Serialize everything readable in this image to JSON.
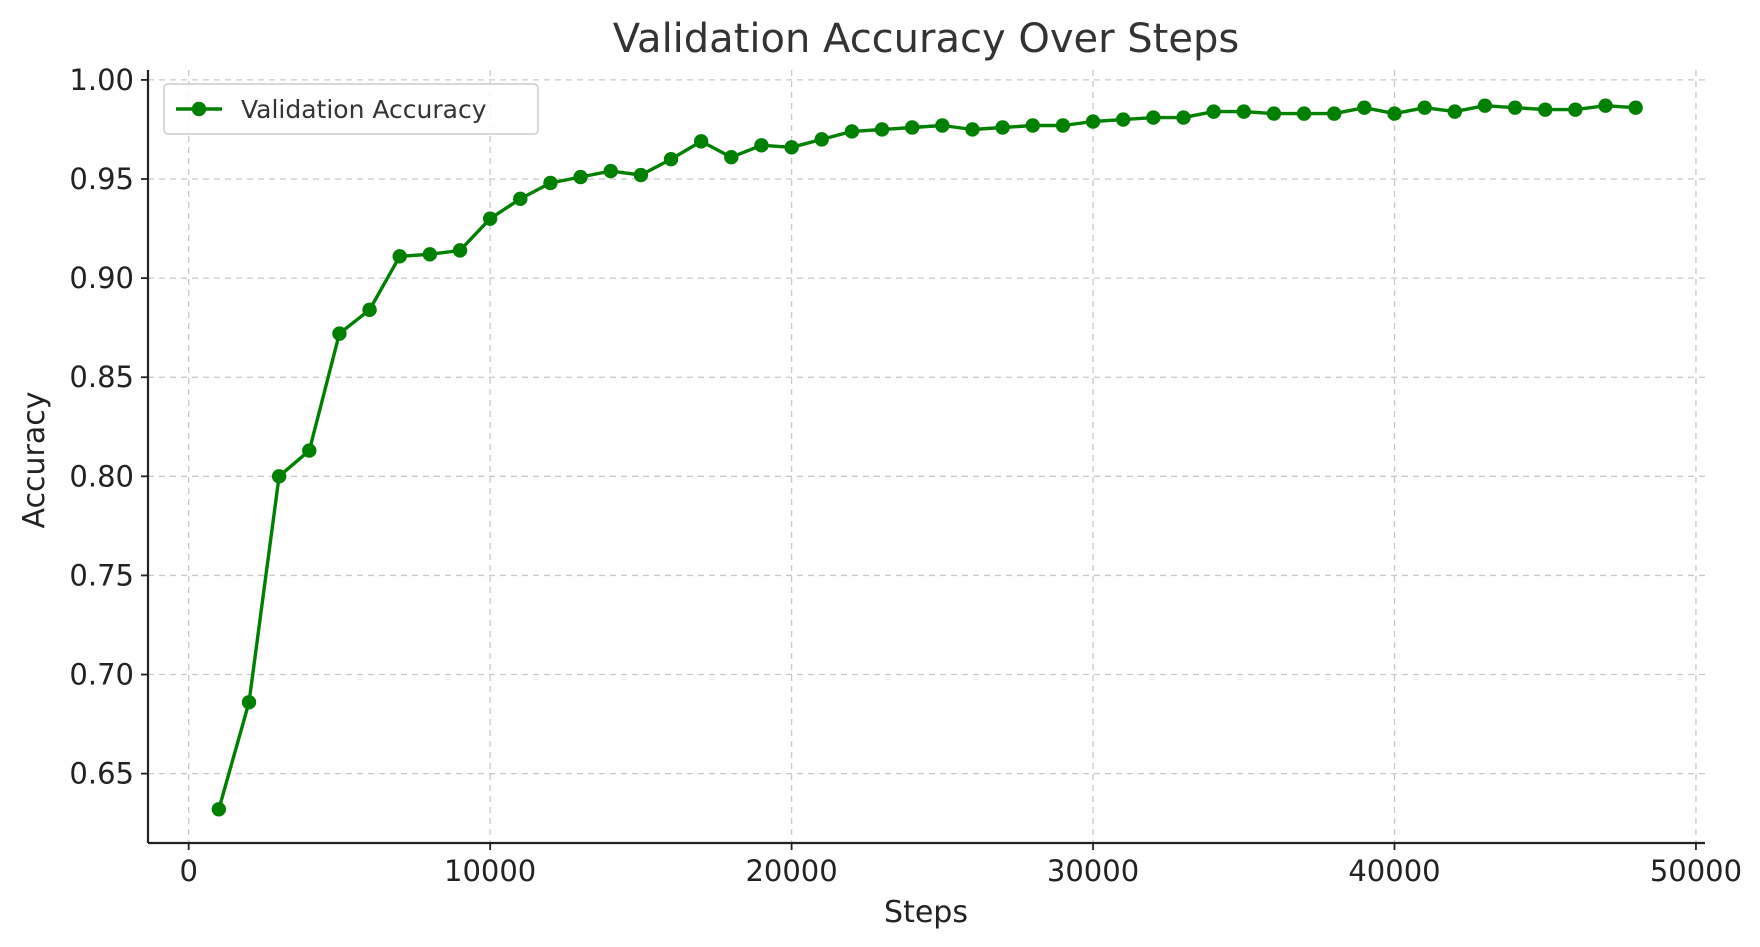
{
  "chart_data": {
    "type": "line",
    "title": "Validation Accuracy Over Steps",
    "xlabel": "Steps",
    "ylabel": "Accuracy",
    "xlim": [
      -1350,
      50300
    ],
    "ylim": [
      0.615,
      1.005
    ],
    "xticks": [
      0,
      10000,
      20000,
      30000,
      40000,
      50000
    ],
    "xtick_labels": [
      "0",
      "10000",
      "20000",
      "30000",
      "40000",
      "50000"
    ],
    "yticks": [
      0.65,
      0.7,
      0.75,
      0.8,
      0.85,
      0.9,
      0.95,
      1.0
    ],
    "ytick_labels": [
      "0.65",
      "0.70",
      "0.75",
      "0.80",
      "0.85",
      "0.90",
      "0.95",
      "1.00"
    ],
    "grid": true,
    "legend_position": "top-left",
    "series": [
      {
        "name": "Validation Accuracy",
        "color": "#008000",
        "marker": "circle",
        "x": [
          1000,
          2000,
          3000,
          4000,
          5000,
          6000,
          7000,
          8000,
          9000,
          10000,
          11000,
          12000,
          13000,
          14000,
          15000,
          16000,
          17000,
          18000,
          19000,
          20000,
          21000,
          22000,
          23000,
          24000,
          25000,
          26000,
          27000,
          28000,
          29000,
          30000,
          31000,
          32000,
          33000,
          34000,
          35000,
          36000,
          37000,
          38000,
          39000,
          40000,
          41000,
          42000,
          43000,
          44000,
          45000,
          46000,
          47000,
          48000
        ],
        "y": [
          0.632,
          0.686,
          0.8,
          0.813,
          0.872,
          0.884,
          0.911,
          0.912,
          0.914,
          0.93,
          0.94,
          0.948,
          0.951,
          0.954,
          0.952,
          0.96,
          0.969,
          0.961,
          0.967,
          0.966,
          0.97,
          0.974,
          0.975,
          0.976,
          0.977,
          0.975,
          0.976,
          0.977,
          0.977,
          0.979,
          0.98,
          0.981,
          0.981,
          0.984,
          0.984,
          0.983,
          0.983,
          0.983,
          0.986,
          0.983,
          0.986,
          0.984,
          0.987,
          0.986,
          0.985,
          0.985,
          0.987,
          0.986
        ]
      }
    ]
  }
}
